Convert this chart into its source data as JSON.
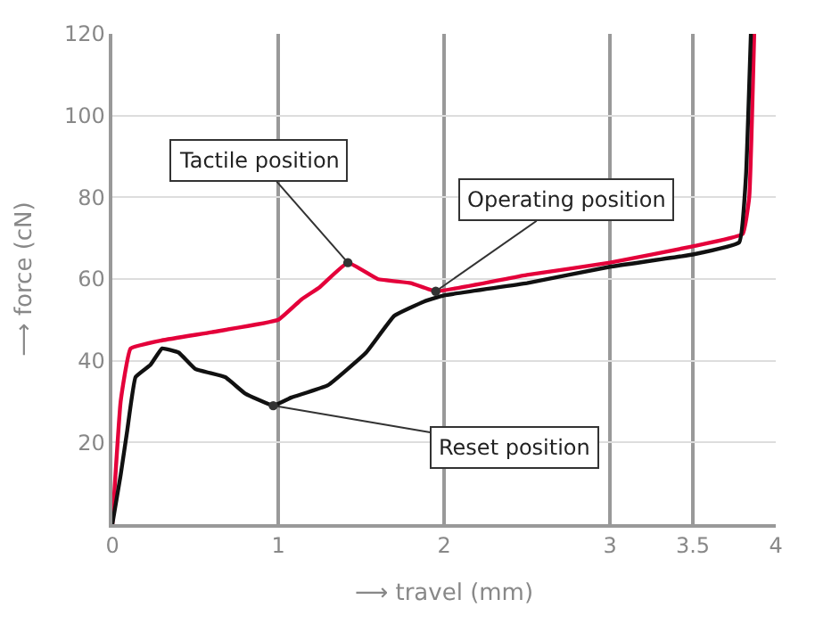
{
  "chart_data": {
    "type": "line",
    "xlabel": "⟶ travel (mm)",
    "ylabel": "⟶ force (cN)",
    "xlim": [
      0,
      4
    ],
    "xticks": [
      0,
      1,
      2,
      3,
      3.5,
      4
    ],
    "ylim": [
      0,
      120
    ],
    "yticks": [
      20,
      40,
      60,
      80,
      100,
      120
    ],
    "grid": true,
    "series": [
      {
        "color": "#e4003a",
        "x": [
          0,
          0.05,
          0.11,
          0.3,
          0.6,
          1.0,
          1.14,
          1.25,
          1.42,
          1.6,
          1.8,
          1.95,
          2.5,
          3.0,
          3.5,
          3.8,
          3.84,
          3.87
        ],
        "values": [
          0,
          30,
          43,
          45,
          47,
          50,
          55,
          58,
          64,
          60,
          59,
          57,
          61,
          64,
          68,
          71,
          80,
          120
        ]
      },
      {
        "color": "#111111",
        "x": [
          0,
          0.05,
          0.09,
          0.14,
          0.23,
          0.3,
          0.4,
          0.5,
          0.68,
          0.8,
          0.97,
          1.08,
          1.3,
          1.53,
          1.7,
          1.88,
          2.0,
          2.5,
          3.0,
          3.5,
          3.78,
          3.82,
          3.85
        ],
        "values": [
          0,
          12,
          23,
          36,
          39,
          43,
          42,
          38,
          36,
          32,
          29,
          31,
          34,
          42,
          51,
          54.5,
          56,
          59,
          63,
          66,
          69,
          85,
          120
        ]
      }
    ],
    "annotations": [
      {
        "text": "Tactile position",
        "x": 1.42,
        "y": 64
      },
      {
        "text": "Operating position",
        "x": 1.95,
        "y": 57
      },
      {
        "text": "Reset position",
        "x": 0.97,
        "y": 29
      }
    ]
  }
}
